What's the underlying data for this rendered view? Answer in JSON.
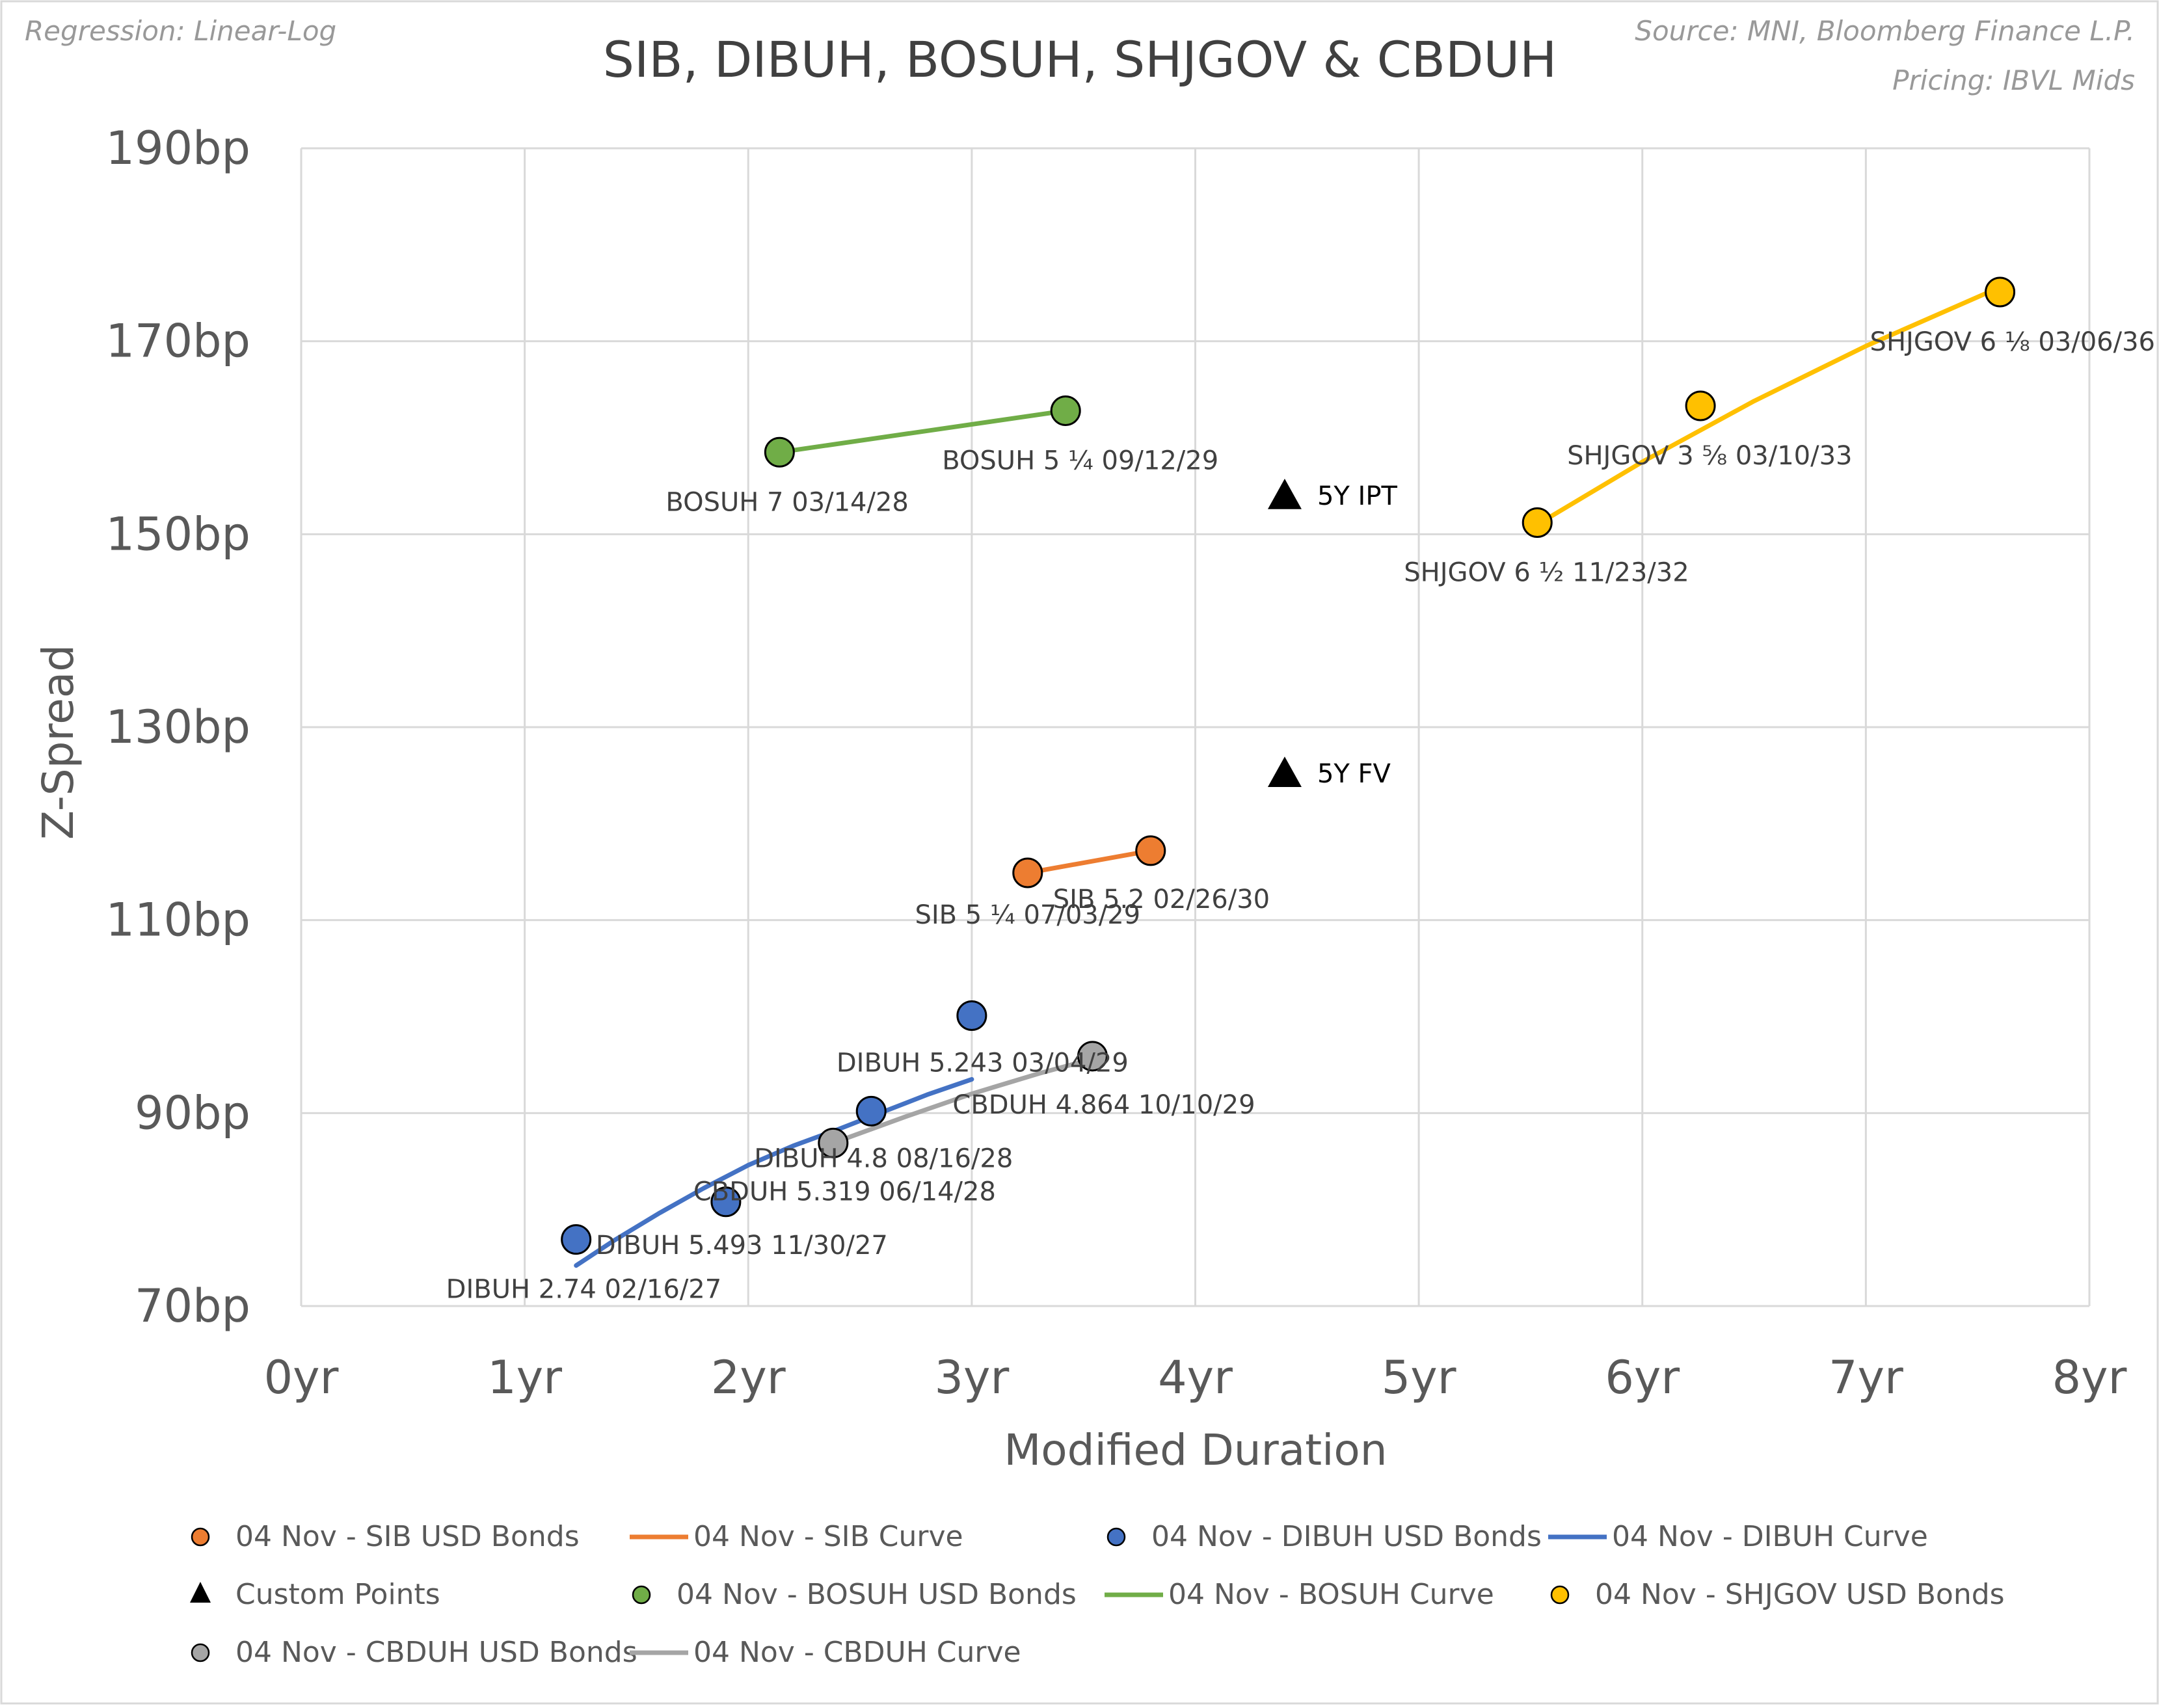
{
  "note_left": "Regression: Linear-Log",
  "source_line1": "Source: MNI, Bloomberg Finance L.P.",
  "source_line2": "Pricing: IBVL Mids",
  "chart_data": {
    "type": "scatter",
    "title": "SIB, DIBUH, BOSUH, SHJGOV & CBDUH",
    "xlabel": "Modified Duration",
    "ylabel": "Z-Spread",
    "xlim": [
      0,
      8
    ],
    "ylim": [
      70,
      190
    ],
    "x_ticks": [
      0,
      1,
      2,
      3,
      4,
      5,
      6,
      7,
      8
    ],
    "x_tick_labels": [
      "0yr",
      "1yr",
      "2yr",
      "3yr",
      "4yr",
      "5yr",
      "6yr",
      "7yr",
      "8yr"
    ],
    "y_ticks": [
      70,
      90,
      110,
      130,
      150,
      170,
      190
    ],
    "y_tick_labels": [
      "70bp",
      "90bp",
      "110bp",
      "130bp",
      "150bp",
      "170bp",
      "190bp"
    ],
    "grid": true,
    "series": [
      {
        "name": "SIB",
        "color": "#ed7d31",
        "bonds_legend": "04 Nov - SIB  USD Bonds",
        "curve_legend": "04 Nov - SIB Curve",
        "points": [
          {
            "x": 3.25,
            "y": 114.9,
            "label": "SIB 5 ¼ 07/03/29"
          },
          {
            "x": 3.8,
            "y": 117.2,
            "label": "SIB 5.2 02/26/30"
          }
        ],
        "curve": [
          [
            3.25,
            114.9
          ],
          [
            3.8,
            117.2
          ]
        ]
      },
      {
        "name": "DIBUH",
        "color": "#4472c4",
        "bonds_legend": "04 Nov - DIBUH  USD Bonds",
        "curve_legend": "04 Nov - DIBUH Curve",
        "points": [
          {
            "x": 1.23,
            "y": 76.9,
            "label": "DIBUH 2.74 02/16/27"
          },
          {
            "x": 1.9,
            "y": 80.8,
            "label": "DIBUH 5.493 11/30/27"
          },
          {
            "x": 2.55,
            "y": 90.2,
            "label": "DIBUH 4.8 08/16/28"
          },
          {
            "x": 3.0,
            "y": 100.1,
            "label": "DIBUH 5.243 03/04/29"
          }
        ],
        "curve": [
          [
            1.23,
            74.2
          ],
          [
            1.4,
            76.8
          ],
          [
            1.6,
            79.6
          ],
          [
            1.8,
            82.2
          ],
          [
            2.0,
            84.6
          ],
          [
            2.2,
            86.6
          ],
          [
            2.4,
            88.3
          ],
          [
            2.6,
            90.1
          ],
          [
            2.8,
            91.9
          ],
          [
            3.0,
            93.5
          ]
        ]
      },
      {
        "name": "BOSUH",
        "color": "#70ad47",
        "bonds_legend": "04 Nov - BOSUH  USD Bonds",
        "curve_legend": "04 Nov - BOSUH Curve",
        "points": [
          {
            "x": 2.14,
            "y": 158.5,
            "label": "BOSUH 7 03/14/28"
          },
          {
            "x": 3.42,
            "y": 162.8,
            "label": "BOSUH 5 ¼ 09/12/29"
          }
        ],
        "curve": [
          [
            2.14,
            158.5
          ],
          [
            3.42,
            162.8
          ]
        ]
      },
      {
        "name": "SHJGOV",
        "color": "#ffc000",
        "bonds_legend": "04 Nov - SHJGOV  USD Bonds",
        "points": [
          {
            "x": 5.53,
            "y": 151.2,
            "label": "SHJGOV 6 ½ 11/23/32"
          },
          {
            "x": 6.26,
            "y": 163.3,
            "label": "SHJGOV 3 ⅝ 03/10/33"
          },
          {
            "x": 7.6,
            "y": 175.1,
            "label": "SHJGOV 6 ⅛ 03/06/36"
          }
        ],
        "curve": [
          [
            5.53,
            151.0
          ],
          [
            6.0,
            157.5
          ],
          [
            6.5,
            163.8
          ],
          [
            7.0,
            169.5
          ],
          [
            7.6,
            175.6
          ]
        ]
      },
      {
        "name": "CBDUH",
        "color": "#a5a5a5",
        "bonds_legend": "04 Nov - CBDUH  USD Bonds",
        "curve_legend": "04 Nov - CBDUH Curve",
        "points": [
          {
            "x": 2.38,
            "y": 86.9,
            "label": "CBDUH 5.319 06/14/28"
          },
          {
            "x": 3.54,
            "y": 95.9,
            "label": "CBDUH 4.864 10/10/29"
          }
        ],
        "curve": [
          [
            2.38,
            86.9
          ],
          [
            2.7,
            89.6
          ],
          [
            3.0,
            92.0
          ],
          [
            3.3,
            94.1
          ],
          [
            3.54,
            95.6
          ]
        ]
      }
    ],
    "custom_points_legend": "Custom Points",
    "custom_points": [
      {
        "x": 4.4,
        "y": 154.0,
        "label": "5Y IPT"
      },
      {
        "x": 4.4,
        "y": 125.2,
        "label": "5Y FV"
      }
    ],
    "legend_position": "bottom",
    "legend": [
      {
        "kind": "marker",
        "series": "SIB",
        "label": "04 Nov - SIB  USD Bonds"
      },
      {
        "kind": "line",
        "series": "SIB",
        "label": "04 Nov - SIB Curve"
      },
      {
        "kind": "marker",
        "series": "DIBUH",
        "label": "04 Nov - DIBUH  USD Bonds"
      },
      {
        "kind": "line",
        "series": "DIBUH",
        "label": "04 Nov - DIBUH Curve"
      },
      {
        "kind": "triangle",
        "series": "custom",
        "label": "Custom Points"
      },
      {
        "kind": "marker",
        "series": "BOSUH",
        "label": "04 Nov - BOSUH  USD Bonds"
      },
      {
        "kind": "line",
        "series": "BOSUH",
        "label": "04 Nov - BOSUH Curve"
      },
      {
        "kind": "marker",
        "series": "SHJGOV",
        "label": "04 Nov - SHJGOV  USD Bonds"
      },
      {
        "kind": "marker",
        "series": "CBDUH",
        "label": "04 Nov - CBDUH  USD Bonds"
      },
      {
        "kind": "line",
        "series": "CBDUH",
        "label": "04 Nov - CBDUH Curve"
      }
    ]
  }
}
